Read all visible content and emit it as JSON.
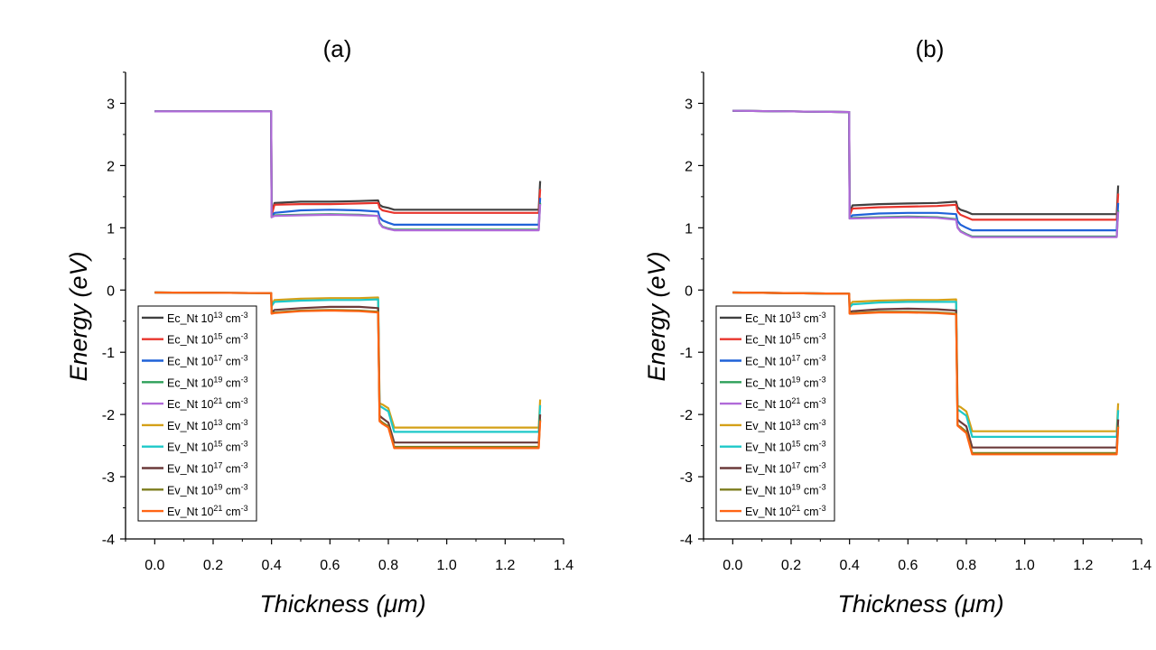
{
  "chart_data": [
    {
      "type": "line",
      "title": "(a)",
      "xlabel": "Thickness (μm)",
      "ylabel": "Energy (eV)",
      "xlim": [
        -0.1,
        1.4
      ],
      "ylim": [
        -4,
        3.5
      ],
      "xticks": [
        "0.0",
        "0.2",
        "0.4",
        "0.6",
        "0.8",
        "1.0",
        "1.2",
        "1.4"
      ],
      "yticks": [
        "-4",
        "-3",
        "-2",
        "-1",
        "0",
        "1",
        "2",
        "3"
      ],
      "legend_position": "lower-left",
      "series": [
        {
          "name": "Ec_Nt 10^13 cm^-3",
          "color": "#404040",
          "x": [
            0,
            0.399,
            0.4,
            0.41,
            0.5,
            0.6,
            0.7,
            0.765,
            0.77,
            0.78,
            0.8,
            0.82,
            1.0,
            1.315,
            1.32
          ],
          "y": [
            2.87,
            2.87,
            1.22,
            1.4,
            1.42,
            1.42,
            1.43,
            1.44,
            1.37,
            1.34,
            1.32,
            1.29,
            1.29,
            1.29,
            1.75
          ]
        },
        {
          "name": "Ec_Nt 10^15 cm^-3",
          "color": "#e8342c",
          "x": [
            0,
            0.399,
            0.4,
            0.41,
            0.5,
            0.6,
            0.7,
            0.765,
            0.77,
            0.78,
            0.8,
            0.82,
            1.0,
            1.315,
            1.32
          ],
          "y": [
            2.87,
            2.87,
            1.2,
            1.37,
            1.38,
            1.38,
            1.39,
            1.4,
            1.32,
            1.28,
            1.26,
            1.24,
            1.24,
            1.24,
            1.62
          ]
        },
        {
          "name": "Ec_Nt 10^17 cm^-3",
          "color": "#1f62d8",
          "x": [
            0,
            0.399,
            0.4,
            0.41,
            0.5,
            0.6,
            0.7,
            0.765,
            0.77,
            0.78,
            0.8,
            0.82,
            1.0,
            1.315,
            1.32
          ],
          "y": [
            2.87,
            2.87,
            1.18,
            1.24,
            1.28,
            1.29,
            1.28,
            1.26,
            1.17,
            1.12,
            1.08,
            1.05,
            1.05,
            1.05,
            1.48
          ]
        },
        {
          "name": "Ec_Nt 10^19 cm^-3",
          "color": "#2ea05a",
          "x": [
            0,
            0.399,
            0.4,
            0.41,
            0.5,
            0.6,
            0.7,
            0.765,
            0.77,
            0.78,
            0.8,
            0.82,
            1.0,
            1.315,
            1.32
          ],
          "y": [
            2.87,
            2.87,
            1.17,
            1.2,
            1.21,
            1.22,
            1.21,
            1.19,
            1.08,
            1.02,
            0.99,
            0.97,
            0.97,
            0.97,
            1.4
          ]
        },
        {
          "name": "Ec_Nt 10^21 cm^-3",
          "color": "#b06ad8",
          "x": [
            0,
            0.399,
            0.4,
            0.41,
            0.5,
            0.6,
            0.7,
            0.765,
            0.77,
            0.78,
            0.8,
            0.82,
            1.0,
            1.315,
            1.32
          ],
          "y": [
            2.87,
            2.87,
            1.17,
            1.19,
            1.2,
            1.21,
            1.2,
            1.19,
            1.07,
            1.01,
            0.98,
            0.96,
            0.96,
            0.96,
            1.38
          ]
        },
        {
          "name": "Ev_Nt 10^13 cm^-3",
          "color": "#d4a017",
          "x": [
            0,
            0.399,
            0.4,
            0.41,
            0.5,
            0.6,
            0.7,
            0.765,
            0.77,
            0.78,
            0.8,
            0.82,
            1.0,
            1.315,
            1.32
          ],
          "y": [
            -0.04,
            -0.05,
            -0.24,
            -0.16,
            -0.14,
            -0.13,
            -0.13,
            -0.12,
            -1.82,
            -1.84,
            -1.9,
            -2.21,
            -2.21,
            -2.21,
            -1.76
          ]
        },
        {
          "name": "Ev_Nt 10^15 cm^-3",
          "color": "#1ec8c8",
          "x": [
            0,
            0.399,
            0.4,
            0.41,
            0.5,
            0.6,
            0.7,
            0.765,
            0.77,
            0.78,
            0.8,
            0.82,
            1.0,
            1.315,
            1.32
          ],
          "y": [
            -0.04,
            -0.05,
            -0.26,
            -0.19,
            -0.17,
            -0.16,
            -0.16,
            -0.15,
            -1.86,
            -1.89,
            -1.95,
            -2.28,
            -2.28,
            -2.28,
            -1.85
          ]
        },
        {
          "name": "Ev_Nt 10^17 cm^-3",
          "color": "#6b3a3a",
          "x": [
            0,
            0.399,
            0.4,
            0.41,
            0.5,
            0.6,
            0.7,
            0.765,
            0.77,
            0.78,
            0.8,
            0.82,
            1.0,
            1.315,
            1.32
          ],
          "y": [
            -0.04,
            -0.05,
            -0.36,
            -0.32,
            -0.29,
            -0.27,
            -0.27,
            -0.29,
            -2.02,
            -2.06,
            -2.13,
            -2.45,
            -2.45,
            -2.45,
            -2.0
          ]
        },
        {
          "name": "Ev_Nt 10^19 cm^-3",
          "color": "#7d7d1e",
          "x": [
            0,
            0.399,
            0.4,
            0.41,
            0.5,
            0.6,
            0.7,
            0.765,
            0.77,
            0.78,
            0.8,
            0.82,
            1.0,
            1.315,
            1.32
          ],
          "y": [
            -0.04,
            -0.05,
            -0.37,
            -0.36,
            -0.33,
            -0.32,
            -0.33,
            -0.35,
            -2.09,
            -2.13,
            -2.19,
            -2.52,
            -2.52,
            -2.52,
            -2.08
          ]
        },
        {
          "name": "Ev_Nt 10^21 cm^-3",
          "color": "#ff6414",
          "x": [
            0,
            0.399,
            0.4,
            0.41,
            0.5,
            0.6,
            0.7,
            0.765,
            0.77,
            0.78,
            0.8,
            0.82,
            1.0,
            1.315,
            1.32
          ],
          "y": [
            -0.04,
            -0.05,
            -0.38,
            -0.37,
            -0.34,
            -0.33,
            -0.34,
            -0.36,
            -2.11,
            -2.15,
            -2.21,
            -2.54,
            -2.54,
            -2.54,
            -2.1
          ]
        }
      ]
    },
    {
      "type": "line",
      "title": "(b)",
      "xlabel": "Thickness (μm)",
      "ylabel": "Energy (eV)",
      "xlim": [
        -0.1,
        1.4
      ],
      "ylim": [
        -4,
        3.5
      ],
      "xticks": [
        "0.0",
        "0.2",
        "0.4",
        "0.6",
        "0.8",
        "1.0",
        "1.2",
        "1.4"
      ],
      "yticks": [
        "-4",
        "-3",
        "-2",
        "-1",
        "0",
        "1",
        "2",
        "3"
      ],
      "legend_position": "lower-left",
      "series": [
        {
          "name": "Ec_Nt 10^13 cm^-3",
          "color": "#404040",
          "x": [
            0,
            0.399,
            0.4,
            0.41,
            0.5,
            0.6,
            0.7,
            0.765,
            0.77,
            0.78,
            0.8,
            0.82,
            1.0,
            1.315,
            1.32
          ],
          "y": [
            2.88,
            2.86,
            1.22,
            1.36,
            1.38,
            1.39,
            1.4,
            1.42,
            1.33,
            1.29,
            1.26,
            1.22,
            1.22,
            1.22,
            1.68
          ]
        },
        {
          "name": "Ec_Nt 10^15 cm^-3",
          "color": "#e8342c",
          "x": [
            0,
            0.399,
            0.4,
            0.41,
            0.5,
            0.6,
            0.7,
            0.765,
            0.77,
            0.78,
            0.8,
            0.82,
            1.0,
            1.315,
            1.32
          ],
          "y": [
            2.88,
            2.86,
            1.2,
            1.31,
            1.33,
            1.34,
            1.35,
            1.37,
            1.26,
            1.21,
            1.17,
            1.13,
            1.13,
            1.13,
            1.55
          ]
        },
        {
          "name": "Ec_Nt 10^17 cm^-3",
          "color": "#1f62d8",
          "x": [
            0,
            0.399,
            0.4,
            0.41,
            0.5,
            0.6,
            0.7,
            0.765,
            0.77,
            0.78,
            0.8,
            0.82,
            1.0,
            1.315,
            1.32
          ],
          "y": [
            2.88,
            2.86,
            1.16,
            1.2,
            1.23,
            1.24,
            1.24,
            1.22,
            1.11,
            1.05,
            1.0,
            0.96,
            0.96,
            0.96,
            1.4
          ]
        },
        {
          "name": "Ec_Nt 10^19 cm^-3",
          "color": "#2ea05a",
          "x": [
            0,
            0.399,
            0.4,
            0.41,
            0.5,
            0.6,
            0.7,
            0.765,
            0.77,
            0.78,
            0.8,
            0.82,
            1.0,
            1.315,
            1.32
          ],
          "y": [
            2.88,
            2.86,
            1.15,
            1.16,
            1.17,
            1.18,
            1.17,
            1.14,
            1.01,
            0.95,
            0.9,
            0.86,
            0.86,
            0.86,
            1.28
          ]
        },
        {
          "name": "Ec_Nt 10^21 cm^-3",
          "color": "#b06ad8",
          "x": [
            0,
            0.399,
            0.4,
            0.41,
            0.5,
            0.6,
            0.7,
            0.765,
            0.77,
            0.78,
            0.8,
            0.82,
            1.0,
            1.315,
            1.32
          ],
          "y": [
            2.88,
            2.86,
            1.15,
            1.15,
            1.16,
            1.17,
            1.16,
            1.13,
            1.0,
            0.94,
            0.89,
            0.85,
            0.85,
            0.85,
            1.26
          ]
        },
        {
          "name": "Ev_Nt 10^13 cm^-3",
          "color": "#d4a017",
          "x": [
            0,
            0.399,
            0.4,
            0.41,
            0.5,
            0.6,
            0.7,
            0.765,
            0.77,
            0.78,
            0.8,
            0.82,
            1.0,
            1.315,
            1.32
          ],
          "y": [
            -0.04,
            -0.06,
            -0.26,
            -0.19,
            -0.17,
            -0.16,
            -0.16,
            -0.15,
            -1.86,
            -1.88,
            -1.95,
            -2.27,
            -2.27,
            -2.27,
            -1.82
          ]
        },
        {
          "name": "Ev_Nt 10^15 cm^-3",
          "color": "#1ec8c8",
          "x": [
            0,
            0.399,
            0.4,
            0.41,
            0.5,
            0.6,
            0.7,
            0.765,
            0.77,
            0.78,
            0.8,
            0.82,
            1.0,
            1.315,
            1.32
          ],
          "y": [
            -0.04,
            -0.06,
            -0.28,
            -0.23,
            -0.2,
            -0.19,
            -0.19,
            -0.19,
            -1.92,
            -1.95,
            -2.02,
            -2.36,
            -2.36,
            -2.36,
            -1.93
          ]
        },
        {
          "name": "Ev_Nt 10^17 cm^-3",
          "color": "#6b3a3a",
          "x": [
            0,
            0.399,
            0.4,
            0.41,
            0.5,
            0.6,
            0.7,
            0.765,
            0.77,
            0.78,
            0.8,
            0.82,
            1.0,
            1.315,
            1.32
          ],
          "y": [
            -0.04,
            -0.06,
            -0.35,
            -0.34,
            -0.31,
            -0.3,
            -0.31,
            -0.33,
            -2.08,
            -2.12,
            -2.19,
            -2.53,
            -2.53,
            -2.53,
            -2.08
          ]
        },
        {
          "name": "Ev_Nt 10^19 cm^-3",
          "color": "#7d7d1e",
          "x": [
            0,
            0.399,
            0.4,
            0.41,
            0.5,
            0.6,
            0.7,
            0.765,
            0.77,
            0.78,
            0.8,
            0.82,
            1.0,
            1.315,
            1.32
          ],
          "y": [
            -0.04,
            -0.06,
            -0.37,
            -0.37,
            -0.35,
            -0.35,
            -0.36,
            -0.38,
            -2.17,
            -2.2,
            -2.28,
            -2.62,
            -2.62,
            -2.62,
            -2.18
          ]
        },
        {
          "name": "Ev_Nt 10^21 cm^-3",
          "color": "#ff6414",
          "x": [
            0,
            0.399,
            0.4,
            0.41,
            0.5,
            0.6,
            0.7,
            0.765,
            0.77,
            0.78,
            0.8,
            0.82,
            1.0,
            1.315,
            1.32
          ],
          "y": [
            -0.04,
            -0.06,
            -0.38,
            -0.38,
            -0.36,
            -0.36,
            -0.37,
            -0.39,
            -2.18,
            -2.22,
            -2.3,
            -2.64,
            -2.64,
            -2.64,
            -2.2
          ]
        }
      ]
    }
  ]
}
